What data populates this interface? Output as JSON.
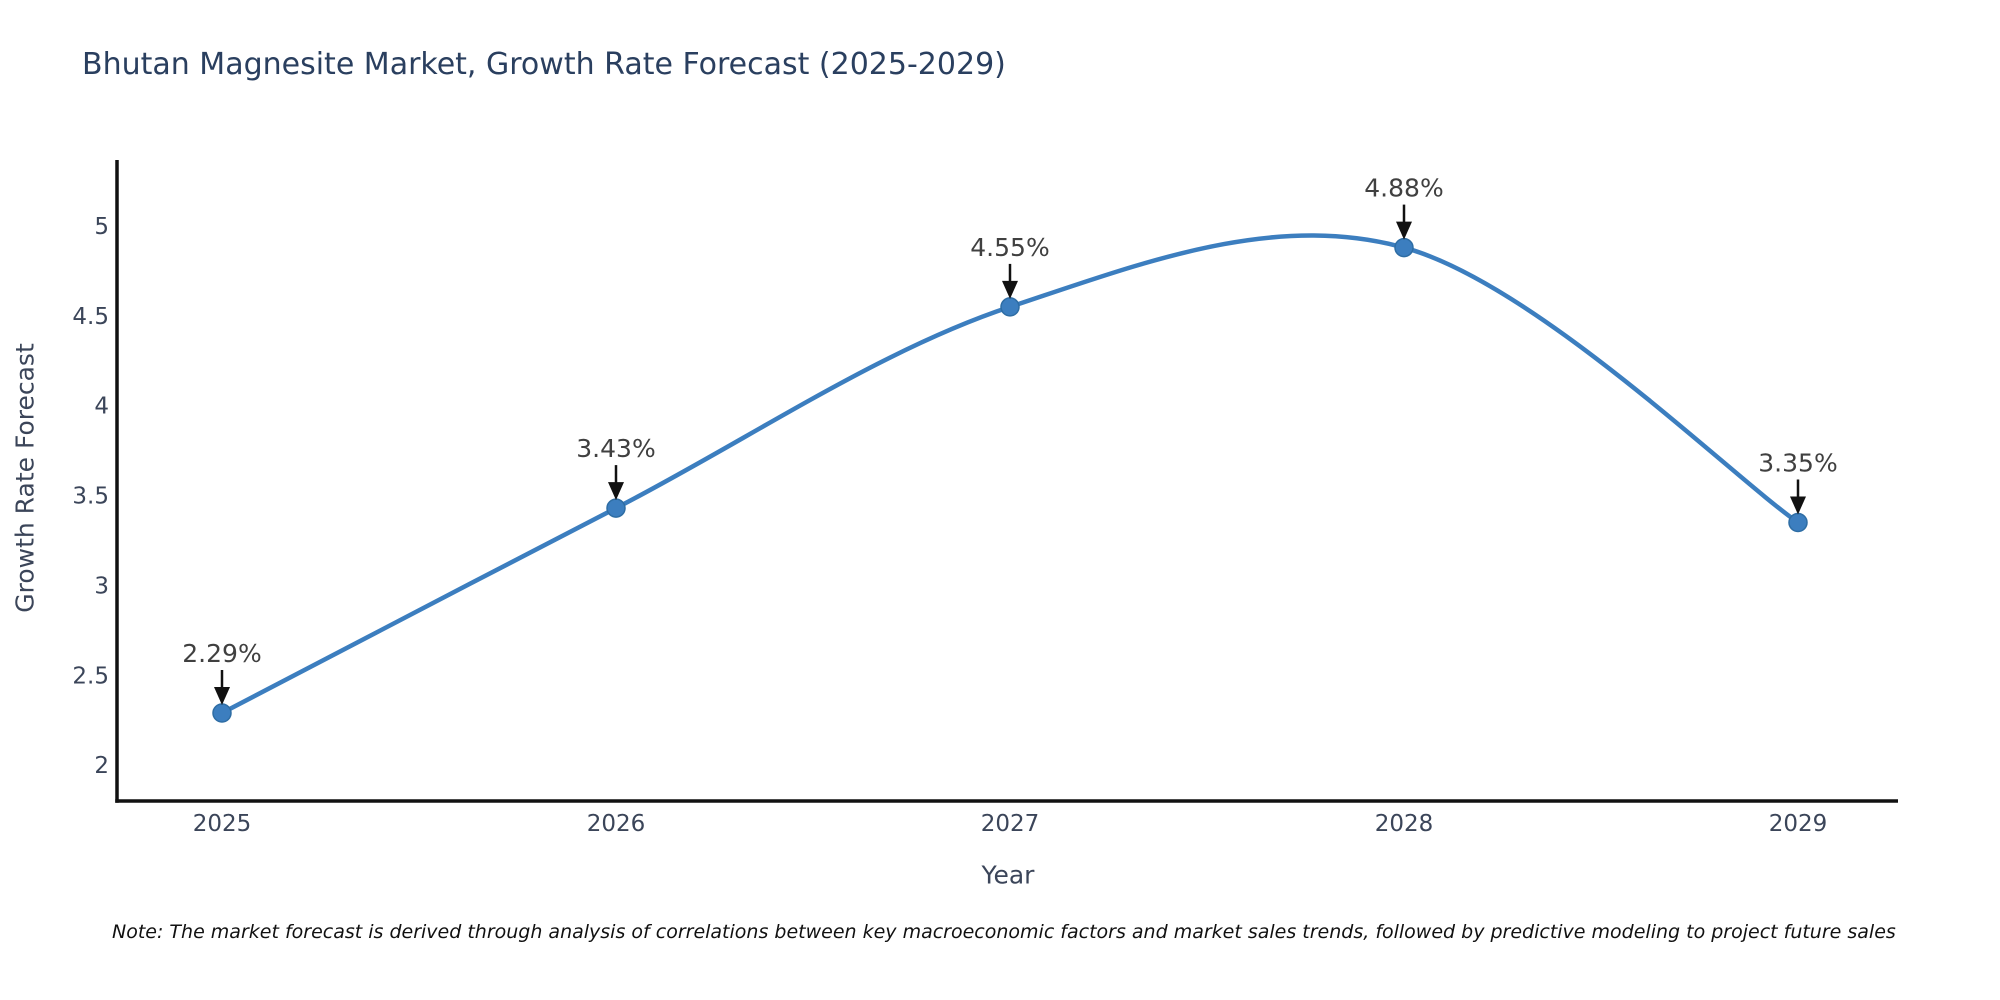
{
  "title": "Bhutan Magnesite Market, Growth Rate Forecast (2025-2029)",
  "note": "Note: The market forecast is derived through analysis of correlations between key macroeconomic factors and market sales trends, followed by predictive modeling to project future sales",
  "chart_data": {
    "type": "line",
    "line_shape": "spline",
    "x": [
      2025,
      2026,
      2027,
      2028,
      2029
    ],
    "series": [
      {
        "name": "Growth Rate Forecast",
        "values": [
          2.29,
          3.43,
          4.55,
          4.88,
          3.35
        ]
      }
    ],
    "point_labels": [
      "2.29%",
      "3.43%",
      "4.55%",
      "4.88%",
      "3.35%"
    ],
    "xlabel": "Year",
    "ylabel": "Growth Rate Forecast",
    "yticks": [
      2,
      2.5,
      3,
      3.5,
      4,
      4.5,
      5
    ],
    "ylim": [
      1.8,
      5.37
    ],
    "grid": false,
    "legend": false,
    "annotation_style": "black-down-arrow",
    "colors": {
      "line": "#3c7ebf",
      "marker": "#3c7ebf",
      "marker_edge": "#2e6da4",
      "annotation_text": "#404040",
      "arrow": "#111111",
      "axis": "#111111",
      "tick_label": "#3b4559",
      "title": "#2a3f5f"
    }
  }
}
